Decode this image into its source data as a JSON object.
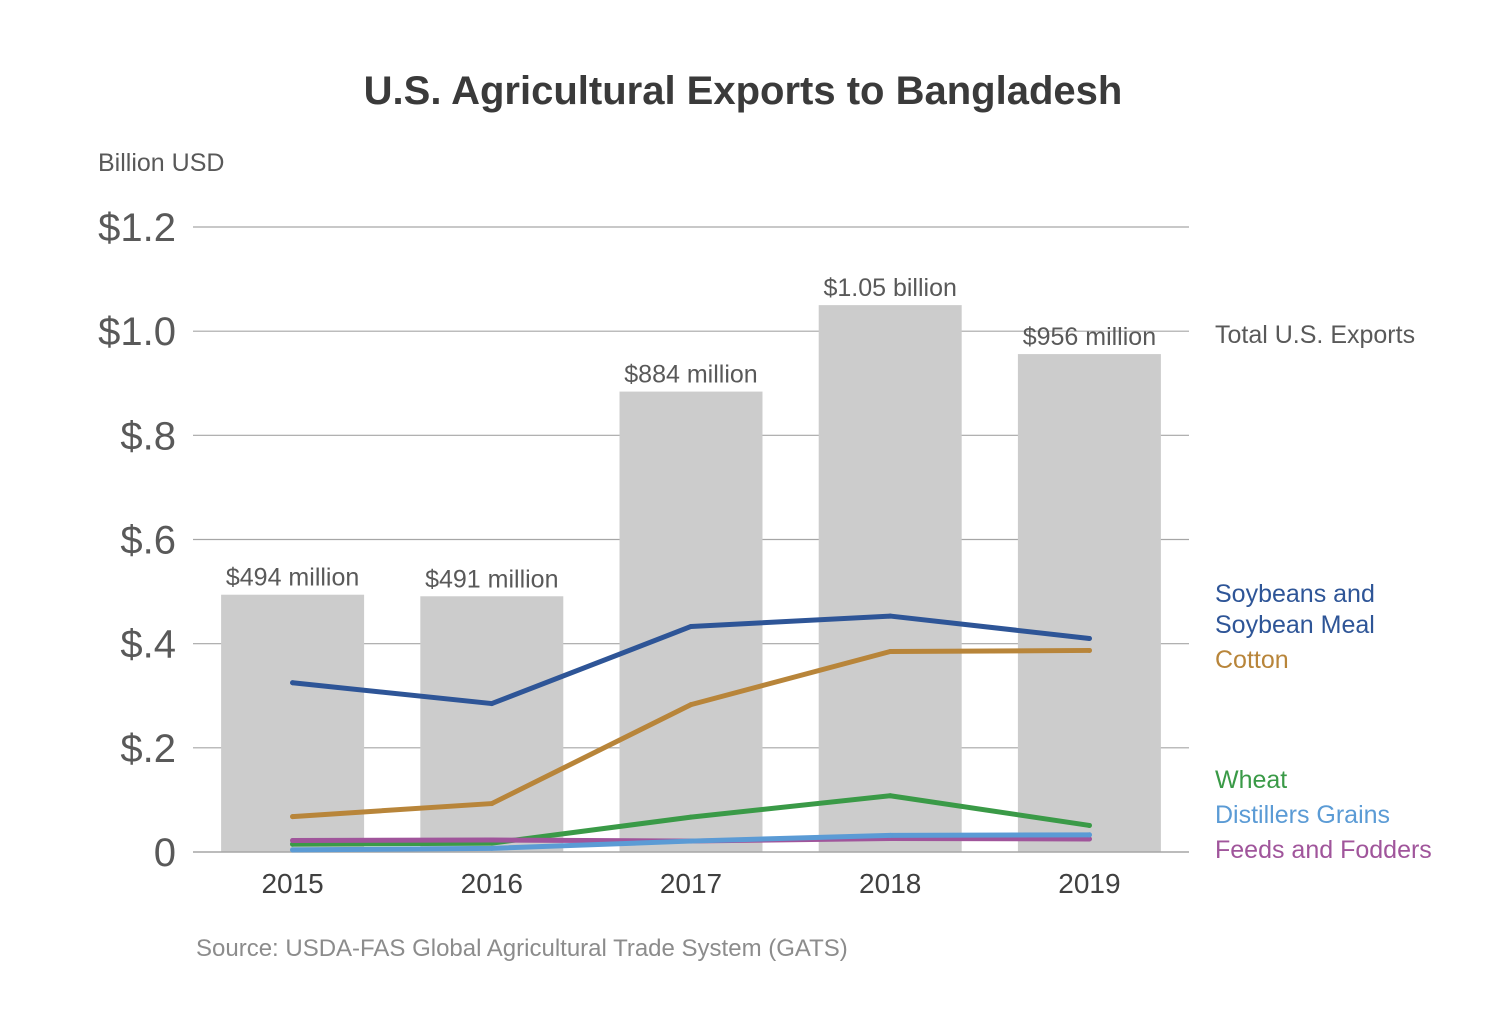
{
  "chart_data": {
    "type": "bar",
    "title": "U.S. Agricultural Exports to Bangladesh",
    "ylabel": "Billion USD",
    "xlabel": "",
    "source": "Source: USDA-FAS Global Agricultural Trade System (GATS)",
    "categories": [
      "2015",
      "2016",
      "2017",
      "2018",
      "2019"
    ],
    "ylim": [
      0,
      1.2
    ],
    "y_ticks": [
      {
        "value": 0,
        "label": "0"
      },
      {
        "value": 0.2,
        "label": "$.2"
      },
      {
        "value": 0.4,
        "label": "$.4"
      },
      {
        "value": 0.6,
        "label": "$.6"
      },
      {
        "value": 0.8,
        "label": "$.8"
      },
      {
        "value": 1.0,
        "label": "$1.0"
      },
      {
        "value": 1.2,
        "label": "$1.2"
      }
    ],
    "grid": true,
    "bars": {
      "name": "Total U.S. Exports",
      "color": "#cccccc",
      "values": [
        0.494,
        0.491,
        0.884,
        1.05,
        0.956
      ],
      "labels": [
        "$494 million",
        "$491 million",
        "$884 million",
        "$1.05 billion",
        "$956 million"
      ]
    },
    "series": [
      {
        "name": "Soybeans and Soybean Meal",
        "label_lines": [
          "Soybeans and",
          "Soybean Meal"
        ],
        "type": "line",
        "color": "#2e5597",
        "values": [
          0.325,
          0.285,
          0.433,
          0.453,
          0.41
        ]
      },
      {
        "name": "Cotton",
        "label_lines": [
          "Cotton"
        ],
        "type": "line",
        "color": "#b8853a",
        "values": [
          0.068,
          0.093,
          0.283,
          0.385,
          0.387
        ]
      },
      {
        "name": "Wheat",
        "label_lines": [
          "Wheat"
        ],
        "type": "line",
        "color": "#3a9a47",
        "values": [
          0.015,
          0.017,
          0.067,
          0.108,
          0.051
        ]
      },
      {
        "name": "Feeds and Fodders",
        "label_lines": [
          "Feeds and Fodders"
        ],
        "type": "line",
        "color": "#a0559b",
        "values": [
          0.022,
          0.023,
          0.021,
          0.026,
          0.025
        ]
      },
      {
        "name": "Distillers Grains",
        "label_lines": [
          "Distillers Grains"
        ],
        "type": "line",
        "color": "#5b9bd5",
        "values": [
          0.004,
          0.007,
          0.021,
          0.032,
          0.033
        ]
      }
    ],
    "legend_placement": "right"
  }
}
